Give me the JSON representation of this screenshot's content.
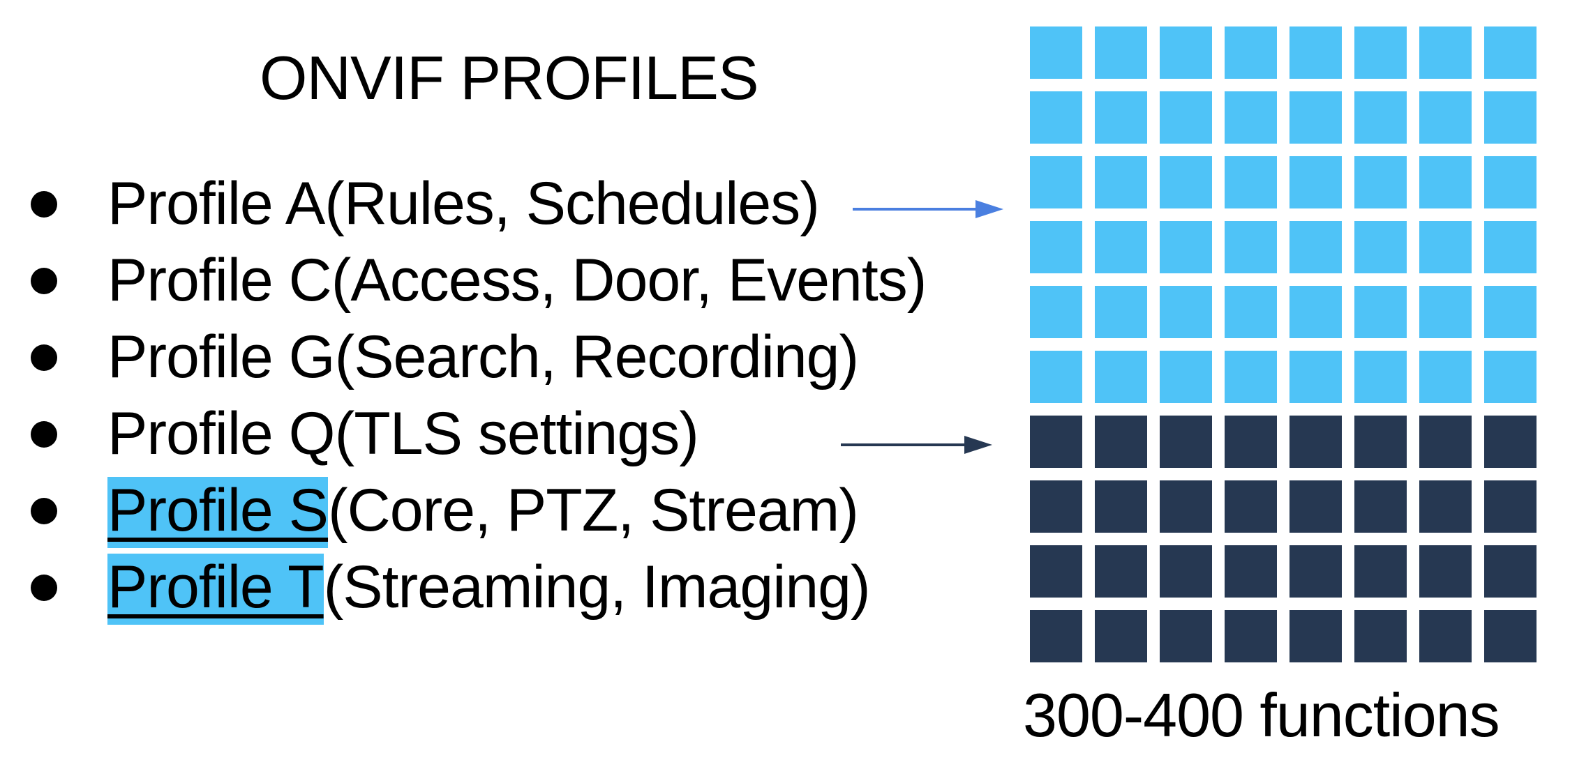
{
  "title": "ONVIF PROFILES",
  "profiles": [
    {
      "name": "Profile A",
      "detail": "(Rules, Schedules)",
      "highlighted": false
    },
    {
      "name": "Profile C",
      "detail": "(Access, Door, Events)",
      "highlighted": false
    },
    {
      "name": "Profile G",
      "detail": "(Search, Recording)",
      "highlighted": false
    },
    {
      "name": "Profile Q",
      "detail": "(TLS settings)",
      "highlighted": false
    },
    {
      "name": "Profile S",
      "detail": "(Core, PTZ, Stream)",
      "highlighted": true
    },
    {
      "name": "Profile T",
      "detail": "(Streaming, Imaging)",
      "highlighted": true
    }
  ],
  "grid": {
    "columns": 8,
    "light_rows": 6,
    "dark_rows": 4,
    "light_color": "#4fc3f7",
    "dark_color": "#263852"
  },
  "arrows": {
    "upper_color": "#4a7fe0",
    "lower_color": "#263852"
  },
  "caption": "300-400 functions",
  "colors": {
    "highlight": "#4fc3f7",
    "text": "#000000",
    "background": "#ffffff"
  }
}
